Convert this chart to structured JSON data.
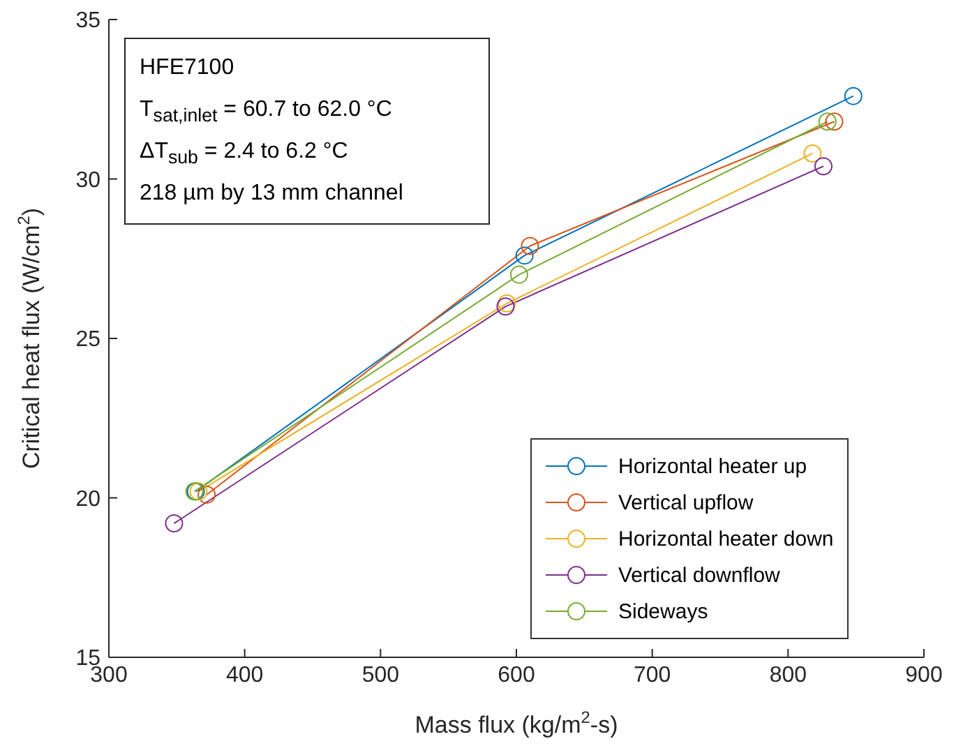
{
  "chart_data": {
    "type": "line",
    "xlabel": "Mass flux (kg/m$^{2}$-s)",
    "ylabel": "Critical heat flux (W/cm$^{2}$)",
    "xlim": [
      300,
      900
    ],
    "xticks": [
      300,
      400,
      500,
      600,
      700,
      800,
      900
    ],
    "ylim": [
      15,
      35
    ],
    "yticks": [
      15,
      20,
      25,
      30,
      35
    ],
    "grid": false,
    "legend": "bottom right",
    "marker": "circle",
    "line_style": "solid",
    "annotations": [
      "HFE7100",
      "T$_{sat,inlet}$ = 60.7 to 62.0 °C",
      "ΔT$_{sub}$ = 2.4 to 6.2 °C",
      "218 µm by 13 mm channel"
    ],
    "series": [
      {
        "name": "Horizontal heater up",
        "color": "#0072bd",
        "x": [
          364,
          606,
          848
        ],
        "values": [
          20.2,
          27.6,
          32.6
        ]
      },
      {
        "name": "Vertical upflow",
        "color": "#d95319",
        "x": [
          372,
          610,
          834
        ],
        "values": [
          20.1,
          27.9,
          31.8
        ]
      },
      {
        "name": "Horizontal heater down",
        "color": "#edb120",
        "x": [
          366,
          593,
          818
        ],
        "values": [
          20.2,
          26.1,
          30.8
        ]
      },
      {
        "name": "Vertical downflow",
        "color": "#7e2f8e",
        "x": [
          348,
          592,
          826
        ],
        "values": [
          19.2,
          26.0,
          30.4
        ]
      },
      {
        "name": "Sideways",
        "color": "#77ac30",
        "x": [
          363,
          602,
          829
        ],
        "values": [
          20.2,
          27.0,
          31.8
        ]
      }
    ]
  }
}
